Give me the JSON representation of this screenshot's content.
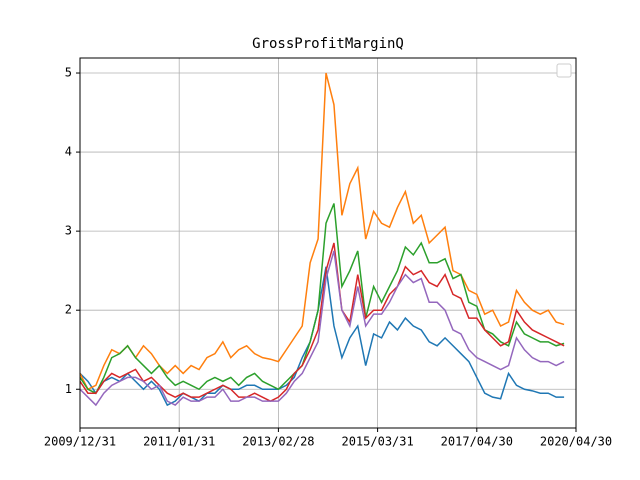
{
  "chart_data": {
    "type": "line",
    "title": "GrossProfitMarginQ",
    "x": [
      0,
      2,
      4,
      6,
      8,
      10,
      12,
      14,
      16,
      18,
      20,
      22,
      24,
      26,
      28,
      30,
      32,
      34,
      36,
      38,
      40,
      42,
      44,
      46,
      48,
      50,
      52,
      54,
      56,
      58,
      60,
      62,
      64,
      66,
      68,
      70,
      72,
      74,
      76,
      78,
      80,
      82,
      84,
      86,
      88,
      90,
      92,
      94,
      96,
      98,
      100,
      102,
      104,
      106,
      108,
      110,
      112,
      114,
      116,
      118,
      120,
      122
    ],
    "xlim": [
      0,
      125
    ],
    "xticks": [
      {
        "value": 0,
        "label": "2009/12/31"
      },
      {
        "value": 25,
        "label": "2011/01/31"
      },
      {
        "value": 50,
        "label": "2013/02/28"
      },
      {
        "value": 75,
        "label": "2015/03/31"
      },
      {
        "value": 100,
        "label": "2017/04/30"
      },
      {
        "value": 125,
        "label": "2020/04/30"
      }
    ],
    "ylim": [
      0.51,
      5.19
    ],
    "yticks": [
      1,
      2,
      3,
      4,
      5
    ],
    "grid": true,
    "series": [
      {
        "color": "#1f77b4",
        "values": [
          1.2,
          1.1,
          0.95,
          1.1,
          1.15,
          1.1,
          1.2,
          1.1,
          1.0,
          1.1,
          1.0,
          0.8,
          0.85,
          0.95,
          0.9,
          0.85,
          0.95,
          0.95,
          1.05,
          1.0,
          1.0,
          1.05,
          1.05,
          1.0,
          1.0,
          1.0,
          1.05,
          1.15,
          1.4,
          1.6,
          2.0,
          2.55,
          1.8,
          1.4,
          1.65,
          1.8,
          1.3,
          1.7,
          1.65,
          1.85,
          1.75,
          1.9,
          1.8,
          1.75,
          1.6,
          1.55,
          1.65,
          1.55,
          1.45,
          1.35,
          1.15,
          0.95,
          0.9,
          0.88,
          1.2,
          1.05,
          1.0,
          0.98,
          0.95,
          0.95,
          0.9,
          0.9
        ]
      },
      {
        "color": "#ff7f0e",
        "values": [
          1.2,
          1.0,
          1.05,
          1.3,
          1.5,
          1.45,
          1.55,
          1.4,
          1.55,
          1.45,
          1.3,
          1.2,
          1.3,
          1.2,
          1.3,
          1.25,
          1.4,
          1.45,
          1.6,
          1.4,
          1.5,
          1.55,
          1.45,
          1.4,
          1.38,
          1.35,
          1.5,
          1.65,
          1.8,
          2.6,
          2.9,
          5.0,
          4.6,
          3.2,
          3.6,
          3.8,
          2.9,
          3.25,
          3.1,
          3.05,
          3.3,
          3.5,
          3.1,
          3.2,
          2.85,
          2.95,
          3.05,
          2.5,
          2.45,
          2.25,
          2.2,
          1.95,
          2.0,
          1.8,
          1.85,
          2.25,
          2.1,
          2.0,
          1.95,
          2.0,
          1.85,
          1.82
        ]
      },
      {
        "color": "#2ca02c",
        "values": [
          1.15,
          1.0,
          0.95,
          1.15,
          1.4,
          1.45,
          1.55,
          1.4,
          1.3,
          1.2,
          1.3,
          1.15,
          1.05,
          1.1,
          1.05,
          1.0,
          1.1,
          1.15,
          1.1,
          1.15,
          1.05,
          1.15,
          1.2,
          1.1,
          1.05,
          1.0,
          1.1,
          1.2,
          1.3,
          1.6,
          2.0,
          3.1,
          3.35,
          2.3,
          2.5,
          2.75,
          1.9,
          2.3,
          2.1,
          2.3,
          2.5,
          2.8,
          2.7,
          2.85,
          2.6,
          2.6,
          2.65,
          2.4,
          2.45,
          2.1,
          2.05,
          1.75,
          1.7,
          1.6,
          1.55,
          1.85,
          1.7,
          1.65,
          1.6,
          1.6,
          1.55,
          1.58
        ]
      },
      {
        "color": "#d62728",
        "values": [
          1.1,
          0.95,
          0.95,
          1.1,
          1.2,
          1.15,
          1.2,
          1.25,
          1.1,
          1.15,
          1.05,
          0.95,
          0.9,
          0.95,
          0.9,
          0.9,
          0.95,
          1.0,
          1.05,
          1.0,
          0.9,
          0.9,
          0.95,
          0.9,
          0.85,
          0.9,
          1.0,
          1.2,
          1.3,
          1.5,
          1.75,
          2.5,
          2.85,
          2.0,
          1.85,
          2.45,
          1.9,
          2.0,
          2.0,
          2.2,
          2.3,
          2.55,
          2.45,
          2.5,
          2.35,
          2.3,
          2.45,
          2.2,
          2.15,
          1.9,
          1.9,
          1.75,
          1.65,
          1.55,
          1.6,
          2.0,
          1.85,
          1.75,
          1.7,
          1.65,
          1.6,
          1.55
        ]
      },
      {
        "color": "#9467bd",
        "values": [
          1.0,
          0.9,
          0.8,
          0.95,
          1.05,
          1.1,
          1.15,
          1.15,
          1.1,
          1.0,
          1.05,
          0.85,
          0.8,
          0.9,
          0.85,
          0.85,
          0.9,
          0.9,
          1.0,
          0.85,
          0.85,
          0.9,
          0.9,
          0.85,
          0.85,
          0.85,
          0.95,
          1.1,
          1.2,
          1.4,
          1.6,
          2.4,
          2.75,
          2.0,
          1.8,
          2.3,
          1.8,
          1.95,
          1.95,
          2.1,
          2.3,
          2.45,
          2.35,
          2.4,
          2.1,
          2.1,
          2.0,
          1.75,
          1.7,
          1.5,
          1.4,
          1.35,
          1.3,
          1.25,
          1.3,
          1.65,
          1.5,
          1.4,
          1.35,
          1.35,
          1.3,
          1.35
        ]
      }
    ]
  }
}
